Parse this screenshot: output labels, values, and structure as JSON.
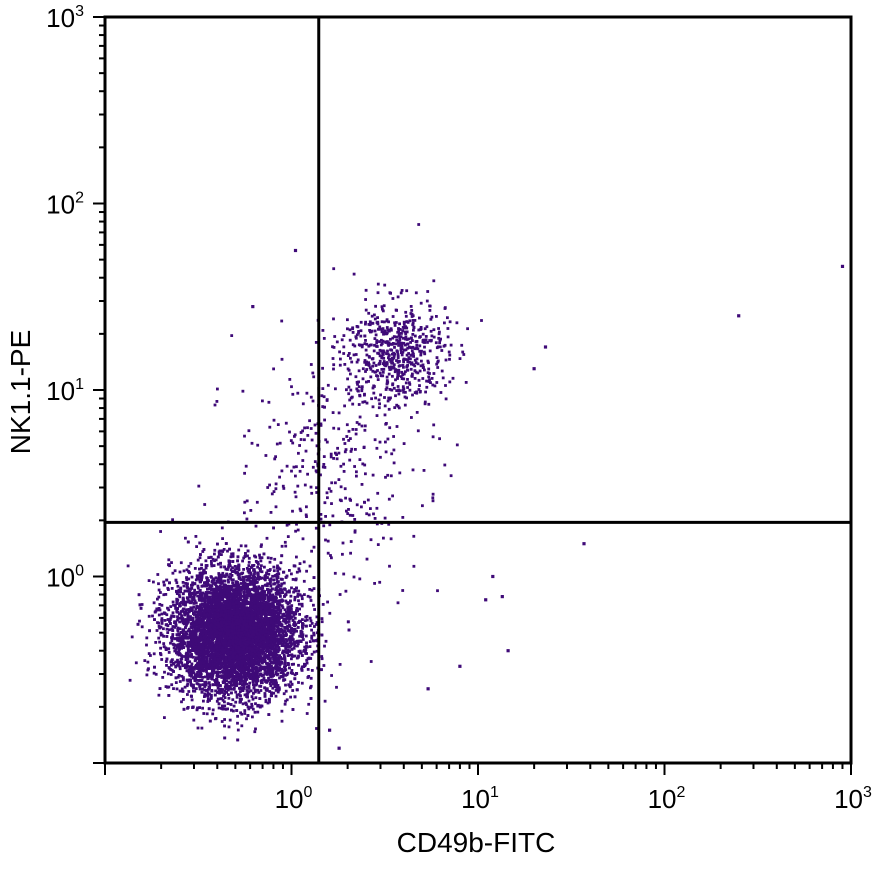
{
  "chart_data": {
    "type": "scatter",
    "title": "",
    "xlabel": "CD49b-FITC",
    "ylabel": "NK1.1-PE",
    "x_scale": "log",
    "y_scale": "log",
    "xlim": [
      0.1,
      1000
    ],
    "ylim": [
      0.1,
      1000
    ],
    "grid": false,
    "legend": "none",
    "point_color": "#3f0a78",
    "quadrant_gates": {
      "x": 1.4,
      "y": 1.95
    },
    "x_ticks": [
      {
        "base": "10",
        "exp": "0"
      },
      {
        "base": "10",
        "exp": "1"
      },
      {
        "base": "10",
        "exp": "2"
      },
      {
        "base": "10",
        "exp": "3"
      }
    ],
    "y_ticks": [
      {
        "base": "10",
        "exp": "0"
      },
      {
        "base": "10",
        "exp": "1"
      },
      {
        "base": "10",
        "exp": "2"
      },
      {
        "base": "10",
        "exp": "3"
      }
    ],
    "populations": [
      {
        "x_center": 0.5,
        "y_center": 0.5,
        "x_spread_decades": 0.17,
        "y_spread_decades": 0.17,
        "approx_count": 7000
      },
      {
        "x_center": 3.6,
        "y_center": 16,
        "x_spread_decades": 0.14,
        "y_spread_decades": 0.14,
        "approx_count": 600
      },
      {
        "x_center": 1.6,
        "y_center": 4,
        "x_spread_decades": 0.25,
        "y_spread_decades": 0.3,
        "approx_count": 350
      }
    ],
    "outlier_points": [
      {
        "x": 900,
        "y": 46
      },
      {
        "x": 250,
        "y": 25
      },
      {
        "x": 23,
        "y": 17
      },
      {
        "x": 20,
        "y": 13
      },
      {
        "x": 37,
        "y": 1.5
      },
      {
        "x": 12,
        "y": 1.0
      },
      {
        "x": 13.5,
        "y": 0.78
      },
      {
        "x": 11,
        "y": 0.75
      },
      {
        "x": 14.5,
        "y": 0.4
      },
      {
        "x": 8,
        "y": 0.33
      },
      {
        "x": 5.4,
        "y": 0.25
      },
      {
        "x": 1.05,
        "y": 56
      },
      {
        "x": 0.62,
        "y": 28
      },
      {
        "x": 1.8,
        "y": 0.12
      },
      {
        "x": 1.6,
        "y": 0.15
      }
    ]
  }
}
